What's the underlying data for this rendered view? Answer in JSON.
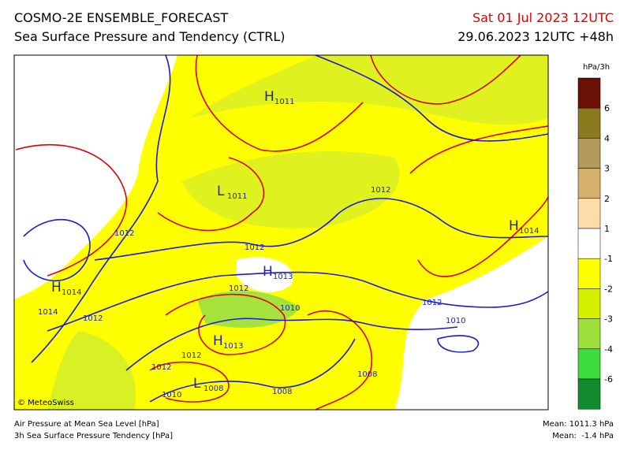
{
  "header": {
    "title": "COSMO-2E ENSEMBLE_FORECAST",
    "subtitle": "Sea Surface Pressure and Tendency (CTRL)",
    "valid_time": "Sat 01 Jul 2023 12UTC",
    "run_time": "29.06.2023 12UTC +48h"
  },
  "map": {
    "credit": "© MeteoSwiss",
    "systems": [
      {
        "letter": "H",
        "value": "1011"
      },
      {
        "letter": "L",
        "value": "1011"
      },
      {
        "letter": "H",
        "value": "1014"
      },
      {
        "letter": "H",
        "value": "1013"
      },
      {
        "letter": "H",
        "value": "1014"
      },
      {
        "letter": "H",
        "value": "1013"
      },
      {
        "letter": "L",
        "value": "1008"
      }
    ],
    "isobar_labels": [
      "1012",
      "1012",
      "1012",
      "1014",
      "1012",
      "1010",
      "1012",
      "1012",
      "1010",
      "1012",
      "1012",
      "1010",
      "1008",
      "1008"
    ]
  },
  "colorbar": {
    "unit": "hPa/3h",
    "labels": [
      "6",
      "4",
      "3",
      "2",
      "1",
      "-1",
      "-2",
      "-3",
      "-4",
      "-6"
    ]
  },
  "footer": {
    "left": [
      "Air Pressure at Mean Sea Level [hPa]",
      "3h Sea Surface Pressure Tendency [hPa]"
    ],
    "right": [
      "Mean: 1011.3 hPa",
      "Mean:  -1.4 hPa"
    ]
  }
}
